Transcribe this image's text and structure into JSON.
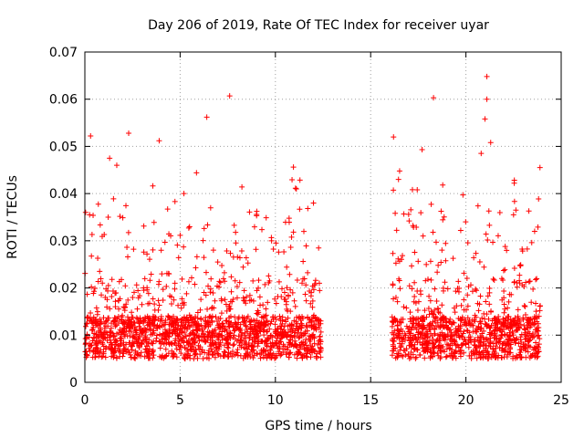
{
  "chart_data": {
    "type": "scatter",
    "title": "Day 206 of 2019, Rate Of TEC Index for receiver uyar",
    "xlabel": "GPS time / hours",
    "ylabel": "ROTI / TECUs",
    "xlim": [
      0,
      25
    ],
    "ylim": [
      0,
      0.07
    ],
    "xticks": [
      "0",
      "5",
      "10",
      "15",
      "20",
      "25"
    ],
    "yticks": [
      "0",
      "0.01",
      "0.02",
      "0.03",
      "0.04",
      "0.05",
      "0.06",
      "0.07"
    ],
    "grid": true,
    "marker": "+",
    "series": [
      {
        "name": "ROTI",
        "color": "#ff0000",
        "segments": [
          {
            "x_start": 0.0,
            "x_end": 12.4
          },
          {
            "x_start": 16.1,
            "x_end": 23.9
          }
        ],
        "notable_points": [
          {
            "x": 7.6,
            "y": 0.0607
          },
          {
            "x": 21.1,
            "y": 0.0648
          },
          {
            "x": 21.1,
            "y": 0.06
          },
          {
            "x": 18.3,
            "y": 0.0603
          },
          {
            "x": 21.0,
            "y": 0.0558
          },
          {
            "x": 6.4,
            "y": 0.0562
          },
          {
            "x": 2.3,
            "y": 0.0528
          },
          {
            "x": 0.3,
            "y": 0.0522
          },
          {
            "x": 16.2,
            "y": 0.052
          },
          {
            "x": 21.3,
            "y": 0.0508
          },
          {
            "x": 3.9,
            "y": 0.0512
          },
          {
            "x": 17.7,
            "y": 0.0493
          },
          {
            "x": 11.1,
            "y": 0.041
          },
          {
            "x": 1.3,
            "y": 0.0475
          },
          {
            "x": 5.2,
            "y": 0.04
          },
          {
            "x": 20.8,
            "y": 0.0485
          },
          {
            "x": 12.0,
            "y": 0.038
          },
          {
            "x": 22.5,
            "y": 0.0355
          },
          {
            "x": 0.25,
            "y": 0.0355
          },
          {
            "x": 9.8,
            "y": 0.03
          }
        ]
      }
    ]
  }
}
